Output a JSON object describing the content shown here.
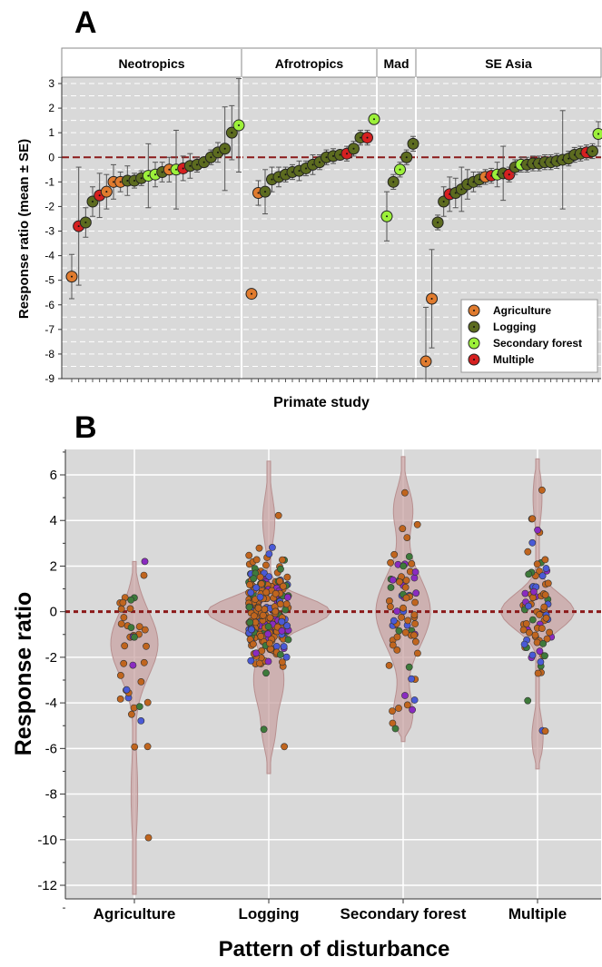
{
  "panel_a": {
    "letter": "A",
    "ylabel": "Response ratio (mean ± SE)",
    "xlabel": "Primate study",
    "yticks": [
      3,
      2,
      1,
      0,
      -1,
      -2,
      -3,
      -4,
      -5,
      -6,
      -7,
      -8,
      -9
    ],
    "regions": [
      "Neotropics",
      "Afrotropics",
      "Mad",
      "SE Asia"
    ],
    "legend": [
      {
        "label": "Agriculture",
        "color": "#E07B2E"
      },
      {
        "label": "Logging",
        "color": "#5C6B1F"
      },
      {
        "label": "Secondary forest",
        "color": "#9CF03A"
      },
      {
        "label": "Multiple",
        "color": "#D62020"
      }
    ]
  },
  "panel_b": {
    "letter": "B",
    "ylabel": "Response ratio",
    "xlabel": "Pattern of disturbance",
    "yticks": [
      6,
      4,
      2,
      0,
      -2,
      -4,
      -6,
      -8,
      -10,
      -12
    ],
    "categories": [
      "Agriculture",
      "Logging",
      "Secondary forest",
      "Multiple"
    ]
  },
  "colors": {
    "plot_bg": "#D9D9D9",
    "zero_line": "#8B1A1A",
    "violin": "#C8A0A0"
  },
  "chart_data": [
    {
      "type": "scatter",
      "title": "",
      "xlabel": "Primate study",
      "ylabel": "Response ratio (mean ± SE)",
      "ylim": [
        -9,
        3.3
      ],
      "grid": true,
      "legend_position": "bottom-right",
      "groups": [
        {
          "region": "Neotropics",
          "studies": [
            {
              "y": -4.85,
              "se": 0.9,
              "type": "Agriculture"
            },
            {
              "y": -2.8,
              "se": 2.4,
              "type": "Multiple"
            },
            {
              "y": -2.65,
              "se": 0.6,
              "type": "Logging"
            },
            {
              "y": -1.8,
              "se": 0.6,
              "type": "Logging"
            },
            {
              "y": -1.55,
              "se": 0.9,
              "type": "Multiple"
            },
            {
              "y": -1.4,
              "se": 0.7,
              "type": "Agriculture"
            },
            {
              "y": -1.0,
              "se": 0.7,
              "type": "Agriculture"
            },
            {
              "y": -1.0,
              "se": 0.4,
              "type": "Agriculture"
            },
            {
              "y": -0.95,
              "se": 0.6,
              "type": "Logging"
            },
            {
              "y": -0.95,
              "se": 0.3,
              "type": "Logging"
            },
            {
              "y": -0.85,
              "se": 0.3,
              "type": "Logging"
            },
            {
              "y": -0.75,
              "se": 1.3,
              "type": "Secondary forest"
            },
            {
              "y": -0.7,
              "se": 0.5,
              "type": "Secondary forest"
            },
            {
              "y": -0.6,
              "se": 0.4,
              "type": "Logging"
            },
            {
              "y": -0.5,
              "se": 0.5,
              "type": "Agriculture"
            },
            {
              "y": -0.5,
              "se": 1.6,
              "type": "Secondary forest"
            },
            {
              "y": -0.45,
              "se": 0.5,
              "type": "Multiple"
            },
            {
              "y": -0.35,
              "se": 0.5,
              "type": "Logging"
            },
            {
              "y": -0.3,
              "se": 0.3,
              "type": "Logging"
            },
            {
              "y": -0.2,
              "se": 0.2,
              "type": "Logging"
            },
            {
              "y": 0.0,
              "se": 0.3,
              "type": "Logging"
            },
            {
              "y": 0.2,
              "se": 0.4,
              "type": "Logging"
            },
            {
              "y": 0.35,
              "se": 1.7,
              "type": "Logging"
            },
            {
              "y": 1.0,
              "se": 1.1,
              "type": "Logging"
            },
            {
              "y": 1.3,
              "se": 1.9,
              "type": "Secondary forest"
            }
          ]
        },
        {
          "region": "Afrotropics",
          "studies": [
            {
              "y": -5.55,
              "se": 0.0,
              "type": "Agriculture"
            },
            {
              "y": -1.45,
              "se": 0.5,
              "type": "Agriculture"
            },
            {
              "y": -1.4,
              "se": 0.9,
              "type": "Logging"
            },
            {
              "y": -0.9,
              "se": 0.5,
              "type": "Logging"
            },
            {
              "y": -0.8,
              "se": 0.4,
              "type": "Logging"
            },
            {
              "y": -0.7,
              "se": 0.3,
              "type": "Logging"
            },
            {
              "y": -0.6,
              "se": 0.3,
              "type": "Logging"
            },
            {
              "y": -0.55,
              "se": 0.4,
              "type": "Logging"
            },
            {
              "y": -0.45,
              "se": 0.3,
              "type": "Logging"
            },
            {
              "y": -0.3,
              "se": 0.4,
              "type": "Logging"
            },
            {
              "y": -0.2,
              "se": 0.3,
              "type": "Logging"
            },
            {
              "y": 0.0,
              "se": 0.3,
              "type": "Logging"
            },
            {
              "y": 0.05,
              "se": 0.3,
              "type": "Logging"
            },
            {
              "y": 0.1,
              "se": 0.2,
              "type": "Logging"
            },
            {
              "y": 0.15,
              "se": 0.3,
              "type": "Multiple"
            },
            {
              "y": 0.35,
              "se": 0.3,
              "type": "Logging"
            },
            {
              "y": 0.8,
              "se": 0.3,
              "type": "Logging"
            },
            {
              "y": 0.8,
              "se": 0.3,
              "type": "Multiple"
            },
            {
              "y": 1.55,
              "se": 0.2,
              "type": "Secondary forest"
            }
          ]
        },
        {
          "region": "Mad",
          "studies": [
            {
              "y": -2.4,
              "se": 1.0,
              "type": "Secondary forest"
            },
            {
              "y": -1.0,
              "se": 0.3,
              "type": "Logging"
            },
            {
              "y": -0.5,
              "se": 0.3,
              "type": "Secondary forest"
            },
            {
              "y": 0.0,
              "se": 0.3,
              "type": "Logging"
            },
            {
              "y": 0.55,
              "se": 0.3,
              "type": "Logging"
            }
          ]
        },
        {
          "region": "SE Asia",
          "studies": [
            {
              "y": -8.3,
              "se": 2.2,
              "type": "Agriculture"
            },
            {
              "y": -5.75,
              "se": 2.0,
              "type": "Agriculture"
            },
            {
              "y": -2.65,
              "se": 0.3,
              "type": "Logging"
            },
            {
              "y": -1.8,
              "se": 0.6,
              "type": "Logging"
            },
            {
              "y": -1.5,
              "se": 0.7,
              "type": "Multiple"
            },
            {
              "y": -1.45,
              "se": 0.6,
              "type": "Logging"
            },
            {
              "y": -1.3,
              "se": 0.9,
              "type": "Logging"
            },
            {
              "y": -1.1,
              "se": 0.6,
              "type": "Logging"
            },
            {
              "y": -1.0,
              "se": 0.4,
              "type": "Logging"
            },
            {
              "y": -0.9,
              "se": 0.3,
              "type": "Logging"
            },
            {
              "y": -0.8,
              "se": 0.3,
              "type": "Agriculture"
            },
            {
              "y": -0.75,
              "se": 0.3,
              "type": "Multiple"
            },
            {
              "y": -0.7,
              "se": 0.5,
              "type": "Secondary forest"
            },
            {
              "y": -0.65,
              "se": 1.1,
              "type": "Logging"
            },
            {
              "y": -0.7,
              "se": 0.3,
              "type": "Multiple"
            },
            {
              "y": -0.4,
              "se": 0.3,
              "type": "Logging"
            },
            {
              "y": -0.3,
              "se": 0.3,
              "type": "Secondary forest"
            },
            {
              "y": -0.3,
              "se": 0.3,
              "type": "Logging"
            },
            {
              "y": -0.25,
              "se": 0.3,
              "type": "Logging"
            },
            {
              "y": -0.25,
              "se": 0.3,
              "type": "Logging"
            },
            {
              "y": -0.2,
              "se": 0.3,
              "type": "Logging"
            },
            {
              "y": -0.2,
              "se": 0.3,
              "type": "Logging"
            },
            {
              "y": -0.15,
              "se": 0.3,
              "type": "Logging"
            },
            {
              "y": -0.1,
              "se": 2.0,
              "type": "Logging"
            },
            {
              "y": -0.05,
              "se": 0.3,
              "type": "Logging"
            },
            {
              "y": 0.1,
              "se": 0.3,
              "type": "Logging"
            },
            {
              "y": 0.15,
              "se": 0.3,
              "type": "Logging"
            },
            {
              "y": 0.2,
              "se": 0.3,
              "type": "Multiple"
            },
            {
              "y": 0.25,
              "se": 0.3,
              "type": "Logging"
            },
            {
              "y": 0.95,
              "se": 0.5,
              "type": "Secondary forest"
            }
          ]
        }
      ]
    },
    {
      "type": "violin",
      "title": "",
      "xlabel": "Pattern of disturbance",
      "ylabel": "Response ratio",
      "ylim": [
        -13,
        7.1
      ],
      "grid": true,
      "categories": [
        "Agriculture",
        "Logging",
        "Secondary forest",
        "Multiple"
      ],
      "ranges": [
        [
          -12.4,
          2.2
        ],
        [
          -7.1,
          6.6
        ],
        [
          -5.7,
          6.8
        ],
        [
          -6.9,
          6.7
        ]
      ],
      "medians": [
        -1.4,
        0.0,
        0.0,
        0.0
      ]
    }
  ]
}
